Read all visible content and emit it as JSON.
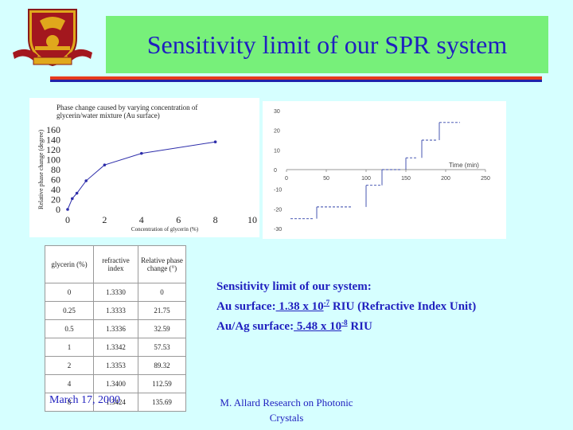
{
  "title": "Sensitivity limit of our SPR system",
  "chart_data": [
    {
      "type": "line",
      "title": "Phase change caused by varying concentration of glycerin/water mixture (Au surface)",
      "xlabel": "Concentration of glycerin (%)",
      "ylabel": "Relative phase change (degree)",
      "x_ticks": [
        "0",
        "2",
        "4",
        "6",
        "8",
        "10"
      ],
      "y_ticks": [
        "0",
        "20",
        "40",
        "60",
        "80",
        "100",
        "120",
        "140",
        "160"
      ],
      "xlim": [
        0,
        10
      ],
      "ylim": [
        0,
        160
      ],
      "x": [
        0,
        0.25,
        0.5,
        1,
        2,
        4,
        8
      ],
      "y": [
        0,
        21.75,
        32.59,
        57.53,
        89.32,
        112.59,
        135.69
      ]
    },
    {
      "type": "line",
      "xlabel": "Time (min)",
      "x_ticks": [
        "0",
        "50",
        "100",
        "150",
        "200",
        "250"
      ],
      "y_ticks": [
        "30",
        "20",
        "10",
        "0",
        "-10",
        "-20",
        "-30"
      ],
      "xlim": [
        0,
        250
      ],
      "ylim": [
        -30,
        30
      ],
      "steps": [
        {
          "x0": 5,
          "x1": 35,
          "y": -25
        },
        {
          "x0": 38,
          "x1": 82,
          "y": -19
        },
        {
          "x0": 100,
          "x1": 120,
          "y": -8
        },
        {
          "x0": 120,
          "x1": 145,
          "y": 0
        },
        {
          "x0": 150,
          "x1": 165,
          "y": 6
        },
        {
          "x0": 170,
          "x1": 190,
          "y": 15
        },
        {
          "x0": 192,
          "x1": 218,
          "y": 24
        }
      ]
    }
  ],
  "table": {
    "headers": [
      "glycerin (%)",
      "refractive index",
      "Relative phase change (°)"
    ],
    "rows": [
      [
        "0",
        "1.3330",
        "0"
      ],
      [
        "0.25",
        "1.3333",
        "21.75"
      ],
      [
        "0.5",
        "1.3336",
        "32.59"
      ],
      [
        "1",
        "1.3342",
        "57.53"
      ],
      [
        "2",
        "1.3353",
        "89.32"
      ],
      [
        "4",
        "1.3400",
        "112.59"
      ],
      [
        "8",
        "1.3424",
        "135.69"
      ]
    ]
  },
  "sensitivity": {
    "heading": "Sensitivity limit of our system:",
    "au_label": "Au surface:",
    "au_value": " 1.38 x 10",
    "au_exp": "-7",
    "au_unit": " RIU (Refractive Index Unit)",
    "auag_label": "Au/Ag surface:",
    "auag_value": " 5.48 x 10",
    "auag_exp": "-8",
    "auag_unit": " RIU"
  },
  "date": "March 17, 2000",
  "footer": "M. Allard Research on Photonic Crystals",
  "colors": {
    "background": "#d6ffff",
    "title_box": "#77f07a",
    "title_text": "#1f1fbf",
    "accent_red": "#e63b1d"
  }
}
